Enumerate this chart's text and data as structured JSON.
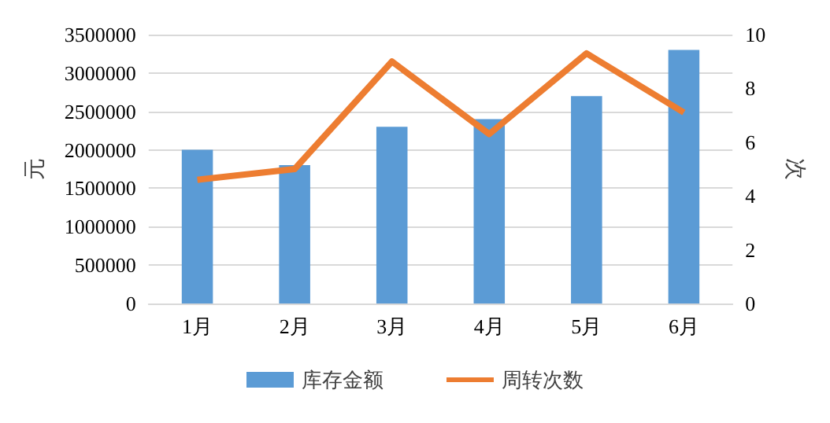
{
  "chart_data": {
    "type": "bar",
    "categories": [
      "1月",
      "2月",
      "3月",
      "4月",
      "5月",
      "6月"
    ],
    "series": [
      {
        "name": "库存金额",
        "color": "#5b9bd5",
        "values": [
          2000000,
          1800000,
          2300000,
          2400000,
          2700000,
          3300000
        ]
      },
      {
        "name": "周转次数",
        "type": "line",
        "axis": "y2",
        "color": "#ed7d31",
        "values": [
          4.6,
          5.0,
          9.0,
          6.3,
          9.3,
          7.1
        ]
      }
    ],
    "ylabel": "元",
    "y2label": "次",
    "ylim": [
      0,
      3500000
    ],
    "yticks": [
      0,
      500000,
      1000000,
      1500000,
      2000000,
      2500000,
      3000000,
      3500000
    ],
    "y2lim": [
      0,
      10
    ],
    "y2ticks": [
      0,
      2,
      4,
      6,
      8,
      10
    ],
    "grid": "y",
    "legend": "bottom",
    "marker": "none"
  }
}
